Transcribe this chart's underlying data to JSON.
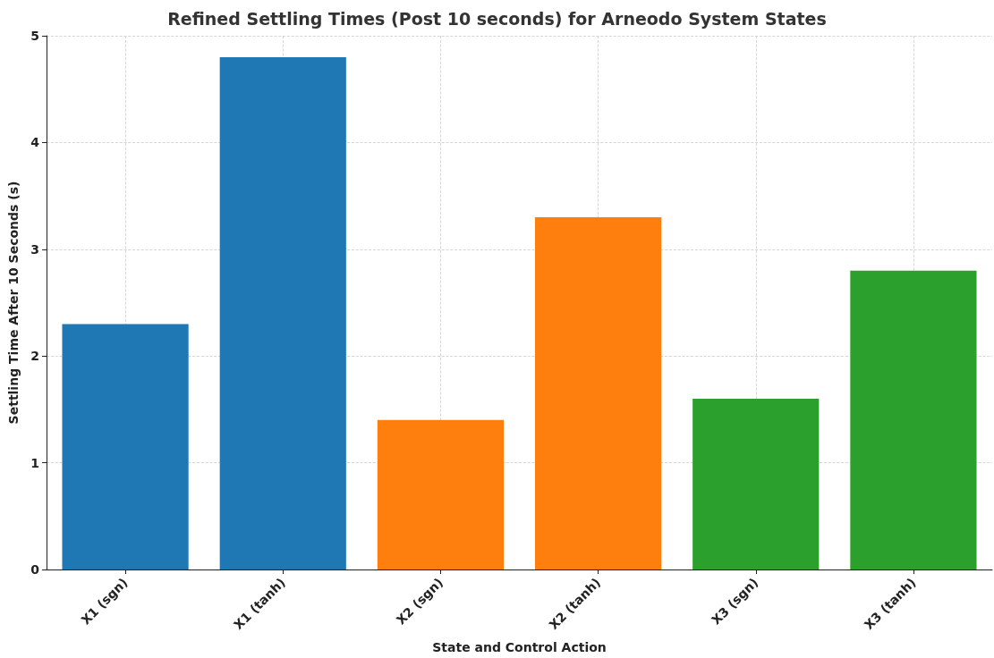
{
  "chart_data": {
    "type": "bar",
    "title": "Refined Settling Times (Post 10 seconds) for Arneodo System States",
    "xlabel": "State and Control Action",
    "ylabel": "Settling Time After 10 Seconds (s)",
    "categories": [
      "X1 (sgn)",
      "X1 (tanh)",
      "X2 (sgn)",
      "X2 (tanh)",
      "X3 (sgn)",
      "X3 (tanh)"
    ],
    "values": [
      2.3,
      4.8,
      1.4,
      3.3,
      1.6,
      2.8
    ],
    "colors": [
      "#1f77b4",
      "#1f77b4",
      "#ff7f0e",
      "#ff7f0e",
      "#2ca02c",
      "#2ca02c"
    ],
    "ylim": [
      0,
      5
    ],
    "yticks": [
      0,
      1,
      2,
      3,
      4,
      5
    ],
    "grid": true
  }
}
